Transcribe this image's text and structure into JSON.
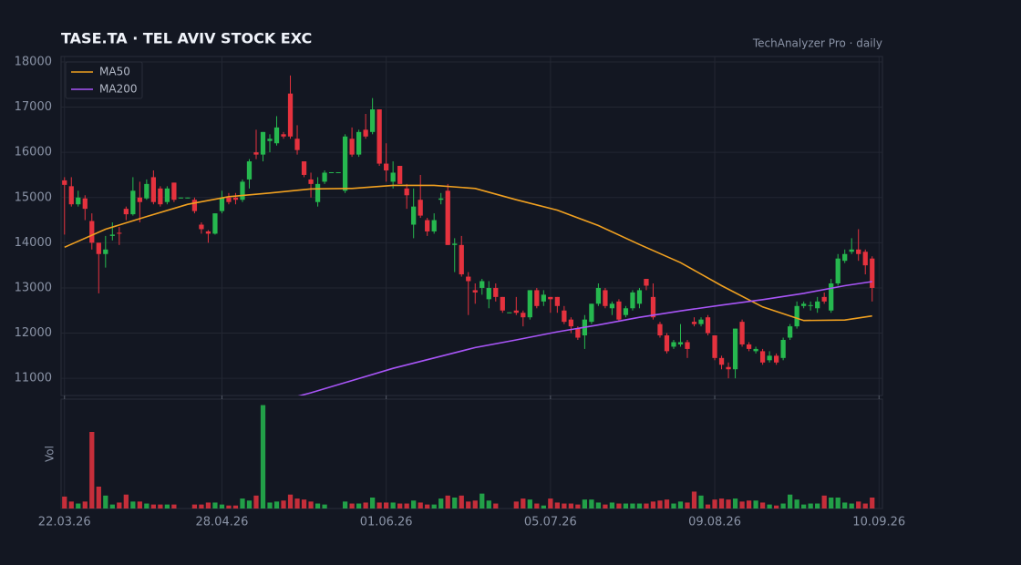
{
  "chart_data": {
    "type": "candlestick",
    "title": "TASE.TA  ·  TEL AVIV STOCK EXC",
    "subtitle": "TechAnalyzer Pro · daily",
    "volume_label": "Vol",
    "up_color": "#26b84f",
    "down_color": "#e5323e",
    "grid": true,
    "legend": "upper left",
    "xlim": [
      -0.5,
      119.5
    ],
    "xticks": [
      {
        "value": 0,
        "label": "22.03.26"
      },
      {
        "value": 23,
        "label": "28.04.26"
      },
      {
        "value": 47,
        "label": "01.06.26"
      },
      {
        "value": 71,
        "label": "05.07.26"
      },
      {
        "value": 95,
        "label": "09.08.26"
      },
      {
        "value": 119,
        "label": "10.09.26"
      }
    ],
    "ylim": [
      10620,
      18120
    ],
    "yticks": [
      11000,
      12000,
      13000,
      14000,
      15000,
      16000,
      17000,
      18000
    ],
    "volume_lim": [
      0,
      110
    ],
    "open": [
      15380,
      15250,
      14850,
      14980,
      14480,
      14000,
      13750,
      14150,
      14220,
      14750,
      14630,
      15000,
      14980,
      15450,
      15200,
      14900,
      15330,
      14980,
      14990,
      14950,
      14400,
      14250,
      14200,
      14700,
      15000,
      15000,
      14950,
      15400,
      16000,
      15950,
      16250,
      16200,
      16400,
      17300,
      16300,
      15800,
      15400,
      14900,
      15350,
      15550,
      15550,
      15150,
      16300,
      15950,
      16500,
      16450,
      16950,
      15750,
      15350,
      15700,
      15200,
      14400,
      14950,
      14500,
      14250,
      14950,
      15150,
      13950,
      13950,
      13250,
      12950,
      13000,
      12750,
      13000,
      12800,
      12450,
      12500,
      12450,
      12350,
      12950,
      12700,
      12800,
      12800,
      12500,
      12300,
      12100,
      11950,
      12250,
      12650,
      12950,
      12550,
      12700,
      12400,
      12550,
      12650,
      13200,
      12800,
      12200,
      11950,
      11700,
      11750,
      11800,
      12250,
      12200,
      12350,
      11950,
      11450,
      11250,
      11200,
      12250,
      11750,
      11600,
      11600,
      11400,
      11500,
      11450,
      11900,
      12150,
      12600,
      12600,
      12550,
      12800,
      12500,
      13100,
      13600,
      13800,
      13850,
      13800,
      13650
    ],
    "high": [
      15450,
      15450,
      15150,
      15050,
      14650,
      14000,
      14150,
      14450,
      14350,
      14800,
      15450,
      15350,
      15400,
      15600,
      15250,
      15250,
      15330,
      15000,
      15000,
      15000,
      14450,
      14280,
      14650,
      15150,
      15100,
      15100,
      15400,
      15850,
      16500,
      16450,
      16400,
      16800,
      16450,
      17700,
      16600,
      15800,
      15550,
      15450,
      15600,
      15560,
      15560,
      16400,
      16550,
      16500,
      16850,
      17200,
      16950,
      16200,
      15800,
      15700,
      15300,
      15200,
      15500,
      14550,
      14650,
      15100,
      15300,
      14100,
      14150,
      13350,
      13100,
      13200,
      13150,
      13100,
      12800,
      12460,
      12800,
      12500,
      12950,
      13000,
      12950,
      12800,
      12800,
      12600,
      12350,
      12150,
      12400,
      12650,
      13100,
      13000,
      12700,
      12750,
      12600,
      12950,
      13000,
      13200,
      13100,
      12250,
      12000,
      11850,
      12200,
      11850,
      12350,
      12350,
      12400,
      11950,
      11500,
      11350,
      12100,
      12300,
      11800,
      11700,
      11650,
      11600,
      11550,
      11900,
      12200,
      12700,
      12700,
      12700,
      12800,
      12900,
      13200,
      13750,
      13850,
      14100,
      14300,
      13850,
      13700
    ],
    "low": [
      14180,
      14800,
      14800,
      14500,
      13850,
      12880,
      13450,
      14050,
      13950,
      14500,
      14600,
      14450,
      14950,
      14850,
      14800,
      14850,
      14900,
      14980,
      14980,
      14650,
      14200,
      14000,
      14180,
      14650,
      14850,
      14850,
      14900,
      15200,
      15850,
      15800,
      16000,
      16150,
      16300,
      16300,
      15950,
      15450,
      15000,
      14800,
      15300,
      15550,
      15550,
      15100,
      15900,
      15900,
      16300,
      16400,
      15700,
      15350,
      15200,
      15300,
      14750,
      14100,
      14550,
      14150,
      14200,
      14850,
      13950,
      13350,
      13250,
      12400,
      12650,
      12850,
      12550,
      12700,
      12450,
      12450,
      12400,
      12150,
      12300,
      12550,
      12600,
      12450,
      12450,
      12200,
      12000,
      11850,
      11650,
      12200,
      12600,
      12550,
      12400,
      12250,
      12350,
      12500,
      12550,
      12950,
      12300,
      11900,
      11550,
      11650,
      11700,
      11450,
      12150,
      12150,
      11950,
      11400,
      11200,
      11000,
      11000,
      11700,
      11600,
      11550,
      11300,
      11350,
      11300,
      11400,
      11850,
      12100,
      12550,
      12500,
      12450,
      12650,
      12450,
      13050,
      13550,
      13750,
      13600,
      13300,
      12700
    ],
    "close": [
      15280,
      14850,
      15000,
      14750,
      14000,
      13750,
      13850,
      14180,
      14200,
      14630,
      15150,
      14900,
      15300,
      14900,
      14850,
      15200,
      14950,
      15000,
      15000,
      14700,
      14300,
      14200,
      14650,
      15000,
      14900,
      14950,
      15350,
      15800,
      15950,
      16450,
      16300,
      16550,
      16350,
      16350,
      16050,
      15500,
      15300,
      15300,
      15550,
      15560,
      15560,
      16350,
      15950,
      16450,
      16350,
      16950,
      15750,
      15600,
      15550,
      15300,
      15050,
      14800,
      14600,
      14250,
      14500,
      14980,
      13950,
      13980,
      13300,
      13150,
      12900,
      13150,
      13000,
      12800,
      12500,
      12460,
      12450,
      12350,
      12950,
      12600,
      12850,
      12750,
      12600,
      12250,
      12150,
      11900,
      12300,
      12650,
      13000,
      12600,
      12650,
      12300,
      12550,
      12900,
      12950,
      13050,
      12350,
      11950,
      11600,
      11800,
      11800,
      11650,
      12200,
      12300,
      12000,
      11450,
      11300,
      11200,
      12100,
      11750,
      11650,
      11650,
      11350,
      11500,
      11350,
      11850,
      12150,
      12600,
      12650,
      12620,
      12700,
      12700,
      13100,
      13650,
      13750,
      13850,
      13750,
      13500,
      13000
    ],
    "volume": [
      12,
      7,
      5,
      7,
      77,
      22,
      13,
      4,
      6,
      14,
      7,
      7,
      5,
      4,
      4,
      4,
      4,
      0,
      0,
      4,
      4,
      6,
      6,
      4,
      3,
      3,
      10,
      8,
      13,
      104,
      6,
      7,
      8,
      14,
      10,
      9,
      7,
      5,
      4,
      0,
      0,
      7,
      5,
      5,
      6,
      11,
      6,
      6,
      6,
      5,
      5,
      8,
      6,
      4,
      4,
      10,
      13,
      11,
      13,
      7,
      8,
      15,
      8,
      5,
      0,
      0,
      7,
      10,
      9,
      5,
      3,
      10,
      6,
      5,
      5,
      4,
      9,
      9,
      6,
      4,
      6,
      5,
      5,
      5,
      5,
      5,
      7,
      8,
      9,
      5,
      7,
      6,
      17,
      13,
      4,
      9,
      10,
      9,
      10,
      7,
      8,
      8,
      6,
      4,
      3,
      5,
      14,
      9,
      4,
      5,
      5,
      13,
      11,
      11,
      6,
      5,
      7,
      5,
      11
    ],
    "series": [
      {
        "name": "MA50",
        "color": "#f0a020",
        "x": [
          0,
          6,
          12,
          18,
          24,
          30,
          36,
          42,
          48,
          54,
          60,
          66,
          72,
          78,
          84,
          90,
          96,
          102,
          108,
          114,
          118
        ],
        "values": [
          13900,
          14300,
          14580,
          14850,
          15020,
          15100,
          15190,
          15200,
          15270,
          15270,
          15200,
          14950,
          14720,
          14380,
          13960,
          13560,
          13050,
          12580,
          12280,
          12290,
          12380
        ]
      },
      {
        "name": "MA200",
        "color": "#a855f7",
        "x": [
          34,
          36,
          42,
          48,
          54,
          60,
          66,
          72,
          78,
          84,
          90,
          96,
          102,
          108,
          114,
          118
        ],
        "values": [
          10600,
          10680,
          10950,
          11220,
          11450,
          11680,
          11850,
          12030,
          12180,
          12350,
          12490,
          12620,
          12740,
          12880,
          13050,
          13140
        ]
      }
    ]
  }
}
